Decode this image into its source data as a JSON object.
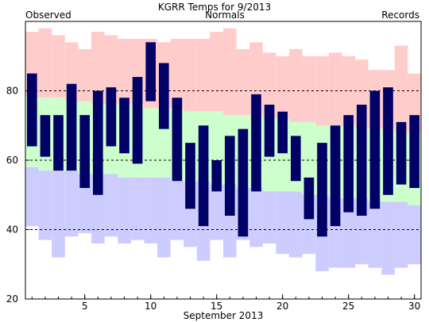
{
  "chart_data": {
    "type": "bar",
    "title": "KGRR Temps for 9/2013",
    "xlabel": "September 2013",
    "ylabel": "",
    "xlim": [
      0.5,
      30.5
    ],
    "ylim": [
      20,
      100
    ],
    "grid": "dashed horizontal lines at 40, 60, 80",
    "legend": {
      "observed": "Observed",
      "normals": "Normals",
      "records": "Records"
    },
    "colors": {
      "observed": "#000066",
      "normals": "#ccffcc",
      "records": "#ffcccc",
      "record_low": "#ccccff",
      "legend_observed": "#000080",
      "legend_normals": "#006600",
      "legend_records": "#aa77cc"
    },
    "x_ticks": [
      5,
      10,
      15,
      20,
      25,
      30
    ],
    "y_ticks": [
      20,
      40,
      60,
      80
    ],
    "days": [
      1,
      2,
      3,
      4,
      5,
      6,
      7,
      8,
      9,
      10,
      11,
      12,
      13,
      14,
      15,
      16,
      17,
      18,
      19,
      20,
      21,
      22,
      23,
      24,
      25,
      26,
      27,
      28,
      29,
      30
    ],
    "series": [
      {
        "name": "Observed High",
        "values": [
          85,
          73,
          73,
          82,
          73,
          80,
          81,
          78,
          84,
          94,
          88,
          78,
          65,
          70,
          60,
          67,
          69,
          79,
          76,
          74,
          67,
          55,
          65,
          70,
          73,
          76,
          80,
          81,
          71,
          73
        ]
      },
      {
        "name": "Observed Low",
        "values": [
          64,
          61,
          57,
          57,
          52,
          50,
          64,
          62,
          59,
          77,
          69,
          54,
          46,
          41,
          51,
          44,
          38,
          51,
          61,
          62,
          54,
          43,
          38,
          41,
          45,
          44,
          46,
          50,
          53,
          52
        ]
      },
      {
        "name": "Normal High",
        "values": [
          78,
          78,
          78,
          77,
          77,
          76,
          76,
          76,
          76,
          75,
          75,
          75,
          74,
          74,
          74,
          73,
          73,
          73,
          72,
          72,
          71,
          71,
          70,
          70,
          70,
          69,
          69,
          69,
          68,
          68
        ]
      },
      {
        "name": "Normal Low",
        "values": [
          58,
          57,
          57,
          57,
          56,
          56,
          56,
          55,
          55,
          55,
          55,
          54,
          54,
          54,
          53,
          53,
          52,
          52,
          51,
          51,
          51,
          50,
          50,
          49,
          49,
          49,
          48,
          48,
          48,
          47
        ]
      },
      {
        "name": "Record High",
        "values": [
          97,
          98,
          96,
          94,
          92,
          97,
          96,
          95,
          95,
          95,
          94,
          95,
          95,
          95,
          97,
          98,
          92,
          94,
          91,
          90,
          92,
          90,
          90,
          91,
          90,
          89,
          86,
          86,
          93,
          85
        ]
      },
      {
        "name": "Record Low",
        "values": [
          41,
          37,
          32,
          38,
          39,
          36,
          38,
          36,
          37,
          36,
          32,
          37,
          35,
          31,
          37,
          32,
          37,
          35,
          36,
          33,
          32,
          33,
          28,
          29,
          29,
          30,
          29,
          27,
          29,
          30
        ]
      }
    ]
  }
}
